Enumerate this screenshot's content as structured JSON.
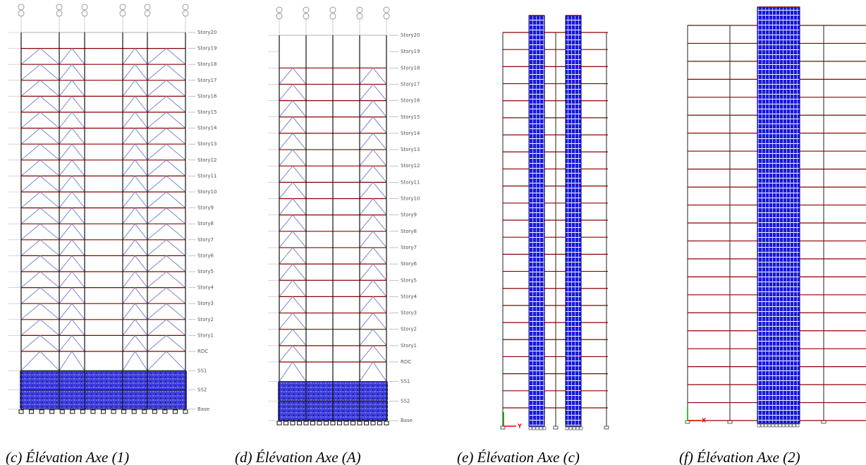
{
  "figure": {
    "panels": [
      {
        "caption": "(c)  Élévation Axe (1)",
        "levels": [
          "Story20",
          "Story19",
          "Story18",
          "Story17",
          "Story16",
          "Story15",
          "Story14",
          "Story13",
          "Story12",
          "Story11",
          "Story10",
          "Story9",
          "Story8",
          "Story7",
          "Story6",
          "Story5",
          "Story4",
          "Story3",
          "Story2",
          "Story1",
          "RDC",
          "SS1",
          "SS2",
          "Base"
        ]
      },
      {
        "caption": "(d)  Élévation Axe (A)",
        "levels": [
          "Story20",
          "Story19",
          "Story18",
          "Story17",
          "Story16",
          "Story15",
          "Story14",
          "Story13",
          "Story12",
          "Story11",
          "Story10",
          "Story9",
          "Story8",
          "Story7",
          "Story6",
          "Story5",
          "Story4",
          "Story3",
          "Story2",
          "Story1",
          "RDC",
          "SS1",
          "SS2",
          "Base"
        ]
      },
      {
        "caption": "(e)  Élévation Axe (c)",
        "axis_label": "Y"
      },
      {
        "caption": "(f)  Élévation Axe (2)",
        "axis_label": "X"
      }
    ]
  }
}
